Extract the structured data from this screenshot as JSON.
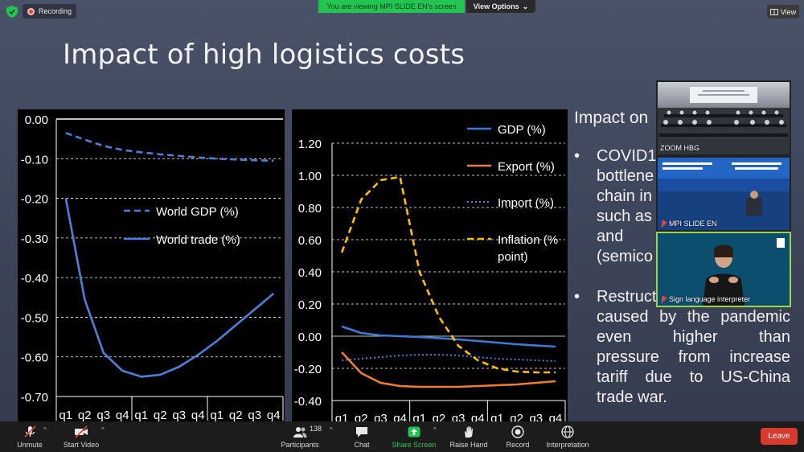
{
  "top_bar": {
    "recording_label": "Recording",
    "viewing_banner": "You are viewing MPI SLIDE EN's screen",
    "view_options_label": "View Options",
    "view_label": "View"
  },
  "slide": {
    "title": "Impact of high logistics costs",
    "impact_heading": "Impact on",
    "bullet1_lines": [
      "COVID1",
      "bottlene",
      "chain in",
      "such as",
      "and",
      "(semico"
    ],
    "bullet2_line1": "Restruct",
    "bullet2_justified": [
      [
        "caused",
        "by",
        "the",
        "pandemic"
      ],
      [
        "even",
        "higher",
        "than"
      ],
      [
        "pressure",
        "from",
        "increase"
      ],
      [
        "tariff",
        "due",
        "to",
        "US-China"
      ]
    ],
    "bullet2_last": "trade war.",
    "bullet_symbol": "•"
  },
  "chart_data": [
    {
      "type": "line",
      "categories": [
        "q1",
        "q2",
        "q3",
        "q4",
        "q1",
        "q2",
        "q3",
        "q4",
        "q1",
        "q2",
        "q3",
        "q4"
      ],
      "ylim": [
        -0.7,
        0.0
      ],
      "yticks": [
        "0.00",
        "-0.10",
        "-0.20",
        "-0.30",
        "-0.40",
        "-0.50",
        "-0.60",
        "-0.70"
      ],
      "ytick_values": [
        0,
        -0.1,
        -0.2,
        -0.3,
        -0.4,
        -0.5,
        -0.6,
        -0.7
      ],
      "series": [
        {
          "name": "World GDP (%)",
          "style": "dashed",
          "color": "#4f7fd9",
          "values": [
            -0.035,
            -0.052,
            -0.068,
            -0.078,
            -0.084,
            -0.089,
            -0.093,
            -0.097,
            -0.1,
            -0.102,
            -0.104,
            -0.105
          ]
        },
        {
          "name": "World trade (%)",
          "style": "solid",
          "color": "#4f7fd9",
          "values": [
            -0.2,
            -0.455,
            -0.59,
            -0.635,
            -0.65,
            -0.645,
            -0.625,
            -0.595,
            -0.56,
            -0.52,
            -0.48,
            -0.44
          ]
        }
      ],
      "legend_position": "center-right"
    },
    {
      "type": "line",
      "categories": [
        "q1",
        "q2",
        "q3",
        "q4",
        "q1",
        "q2",
        "q3",
        "q4",
        "q1",
        "q2",
        "q3",
        "q4"
      ],
      "ylim": [
        -0.4,
        1.2
      ],
      "yticks": [
        "1.20",
        "1.00",
        "0.80",
        "0.60",
        "0.40",
        "0.20",
        "0.00",
        "-0.20",
        "-0.40"
      ],
      "ytick_values": [
        1.2,
        1.0,
        0.8,
        0.6,
        0.4,
        0.2,
        0.0,
        -0.2,
        -0.4
      ],
      "series": [
        {
          "name": "GDP (%)",
          "style": "solid",
          "color": "#3a7bd5",
          "values": [
            0.06,
            0.02,
            0.005,
            0.0,
            -0.005,
            -0.012,
            -0.02,
            -0.03,
            -0.04,
            -0.05,
            -0.058,
            -0.065
          ]
        },
        {
          "name": "Export (%)",
          "style": "solid",
          "color": "#ed7d31",
          "values": [
            -0.1,
            -0.23,
            -0.29,
            -0.31,
            -0.315,
            -0.315,
            -0.315,
            -0.31,
            -0.305,
            -0.3,
            -0.29,
            -0.28
          ]
        },
        {
          "name": "Import (%)",
          "style": "dotted",
          "color": "#4f7fd9",
          "values": [
            -0.15,
            -0.14,
            -0.13,
            -0.12,
            -0.115,
            -0.115,
            -0.12,
            -0.13,
            -0.14,
            -0.145,
            -0.15,
            -0.155
          ]
        },
        {
          "name": "Inflation (% point)",
          "name_lines": [
            "Inflation (%",
            "point)"
          ],
          "style": "dashed",
          "color": "#ffc000",
          "values": [
            0.52,
            0.85,
            0.97,
            0.99,
            0.4,
            0.12,
            -0.06,
            -0.15,
            -0.2,
            -0.22,
            -0.225,
            -0.225
          ]
        }
      ],
      "legend_position": "right"
    }
  ],
  "video_tiles": [
    {
      "label": "ZOOM HBG",
      "muted": false
    },
    {
      "label": "MPI SLIDE EN",
      "muted": true
    },
    {
      "label": "Sign language interpreter",
      "muted": true
    }
  ],
  "toolbar": {
    "unmute": "Unmute",
    "start_video": "Start Video",
    "participants": "Participants",
    "participant_count": "138",
    "chat": "Chat",
    "share_screen": "Share Screen",
    "raise_hand": "Raise Hand",
    "record": "Record",
    "interpretation": "Interpretation",
    "leave": "Leave",
    "caret": "^"
  },
  "colors": {
    "share_green": "#23c552",
    "leave_red": "#d93a2f",
    "slide_bg": "#434a60"
  }
}
